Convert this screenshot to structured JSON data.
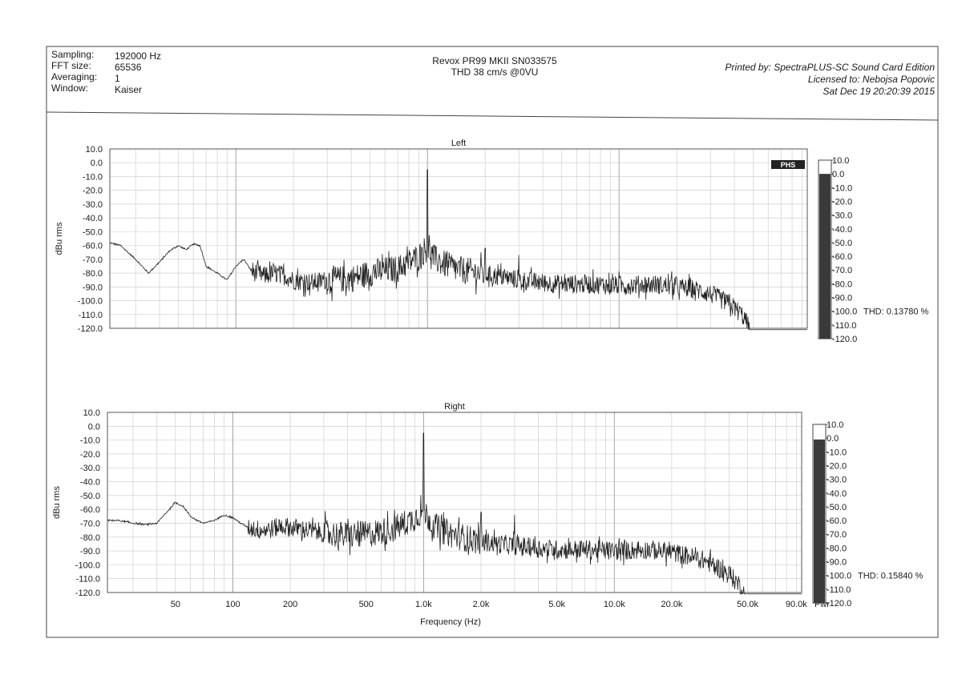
{
  "header": {
    "info": [
      {
        "label": "Sampling:",
        "value": "192000 Hz"
      },
      {
        "label": "FFT size:",
        "value": "65536"
      },
      {
        "label": "Averaging:",
        "value": "1"
      },
      {
        "label": "Window:",
        "value": "Kaiser"
      }
    ],
    "title_line1": "Revox PR99 MKII SN033575",
    "title_line2": "THD 38 cm/s @0VU",
    "printed_by": "Printed by: SpectraPLUS-SC Sound Card Edition",
    "licensed_to": "Licensed to: Nebojsa Popovic",
    "date": "Sat Dec 19 20:20:39 2015"
  },
  "logo_text": "PHS",
  "xaxis": {
    "label": "Frequency (Hz)",
    "ticks": [
      {
        "value": 50,
        "label": "50"
      },
      {
        "value": 100,
        "label": "100"
      },
      {
        "value": 200,
        "label": "200"
      },
      {
        "value": 500,
        "label": "500"
      },
      {
        "value": 1000,
        "label": "1.0k"
      },
      {
        "value": 2000,
        "label": "2.0k"
      },
      {
        "value": 5000,
        "label": "5.0k"
      },
      {
        "value": 10000,
        "label": "10.0k"
      },
      {
        "value": 20000,
        "label": "20.0k"
      },
      {
        "value": 50000,
        "label": "50.0k"
      },
      {
        "value": 90000,
        "label": "90.0k"
      }
    ],
    "power_label": "Pwr"
  },
  "colors": {
    "trace": "#222222",
    "grid": "#c8c8c8",
    "bar_dark": "#3a3a3a"
  },
  "chart_data": [
    {
      "type": "line",
      "title": "Left",
      "ylabel": "dBu rms",
      "xlabel": "",
      "xscale": "log",
      "xlim": [
        22,
        96000
      ],
      "ylim": [
        -120,
        10
      ],
      "yticks": [
        "10.0",
        "0.0",
        "-10.0",
        "-20.0",
        "-30.0",
        "-40.0",
        "-50.0",
        "-60.0",
        "-70.0",
        "-80.0",
        "-90.0",
        "-100.0",
        "-110.0",
        "-120.0"
      ],
      "thd": "THD: 0.13780 %",
      "level_bar_top_db": 0,
      "series": [
        {
          "peaks": [
            [
              1000,
              -5
            ],
            [
              2000,
              -62
            ],
            [
              3000,
              -67
            ]
          ],
          "x": [
            22,
            25,
            30,
            35,
            40,
            45,
            50,
            55,
            60,
            65,
            70,
            80,
            90,
            100,
            110,
            120,
            140,
            160,
            180,
            200,
            250,
            300,
            400,
            500,
            600,
            700,
            800,
            900,
            950,
            1000,
            1050,
            1100,
            1200,
            1400,
            1700,
            2000,
            2500,
            3000,
            4000,
            5000,
            7000,
            10000,
            15000,
            20000,
            25000,
            30000,
            35000,
            40000,
            45000,
            47000,
            48000,
            48500,
            60000,
            80000,
            94000
          ],
          "y": [
            -58,
            -60,
            -70,
            -80,
            -72,
            -64,
            -60,
            -63,
            -59,
            -60,
            -75,
            -80,
            -85,
            -75,
            -70,
            -78,
            -82,
            -80,
            -82,
            -85,
            -87,
            -85,
            -84,
            -80,
            -78,
            -77,
            -72,
            -68,
            -64,
            -62,
            -66,
            -70,
            -73,
            -77,
            -79,
            -81,
            -83,
            -85,
            -87,
            -88,
            -88,
            -89,
            -88,
            -90,
            -92,
            -95,
            -100,
            -105,
            -112,
            -118,
            -121,
            -121,
            -121,
            -121,
            -121
          ]
        }
      ]
    },
    {
      "type": "line",
      "title": "Right",
      "ylabel": "dBu rms",
      "xlabel": "Frequency (Hz)",
      "xscale": "log",
      "xlim": [
        22,
        96000
      ],
      "ylim": [
        -120,
        10
      ],
      "yticks": [
        "10.0",
        "0.0",
        "-10.0",
        "-20.0",
        "-30.0",
        "-40.0",
        "-50.0",
        "-60.0",
        "-70.0",
        "-80.0",
        "-90.0",
        "-100.0",
        "-110.0",
        "-120.0"
      ],
      "thd": "THD: 0.15840 %",
      "level_bar_top_db": -1,
      "series": [
        {
          "peaks": [
            [
              1000,
              -5
            ],
            [
              2000,
              -62
            ],
            [
              3000,
              -64
            ]
          ],
          "x": [
            22,
            25,
            30,
            35,
            40,
            45,
            50,
            55,
            60,
            65,
            70,
            80,
            90,
            100,
            110,
            120,
            140,
            160,
            180,
            200,
            250,
            300,
            400,
            500,
            600,
            700,
            800,
            900,
            950,
            1000,
            1050,
            1100,
            1200,
            1400,
            1700,
            2000,
            2500,
            3000,
            4000,
            5000,
            7000,
            10000,
            15000,
            20000,
            25000,
            30000,
            35000,
            40000,
            45000,
            47000,
            48000,
            48500,
            60000,
            80000,
            94000
          ],
          "y": [
            -68,
            -68,
            -70,
            -71,
            -70,
            -62,
            -55,
            -58,
            -65,
            -68,
            -70,
            -68,
            -64,
            -66,
            -70,
            -73,
            -75,
            -74,
            -72,
            -73,
            -75,
            -77,
            -79,
            -78,
            -76,
            -74,
            -70,
            -66,
            -63,
            -61,
            -65,
            -70,
            -74,
            -78,
            -81,
            -83,
            -85,
            -86,
            -88,
            -89,
            -89,
            -90,
            -89,
            -91,
            -94,
            -97,
            -102,
            -107,
            -114,
            -119,
            -121,
            -121,
            -121,
            -121,
            -121
          ]
        }
      ]
    }
  ]
}
